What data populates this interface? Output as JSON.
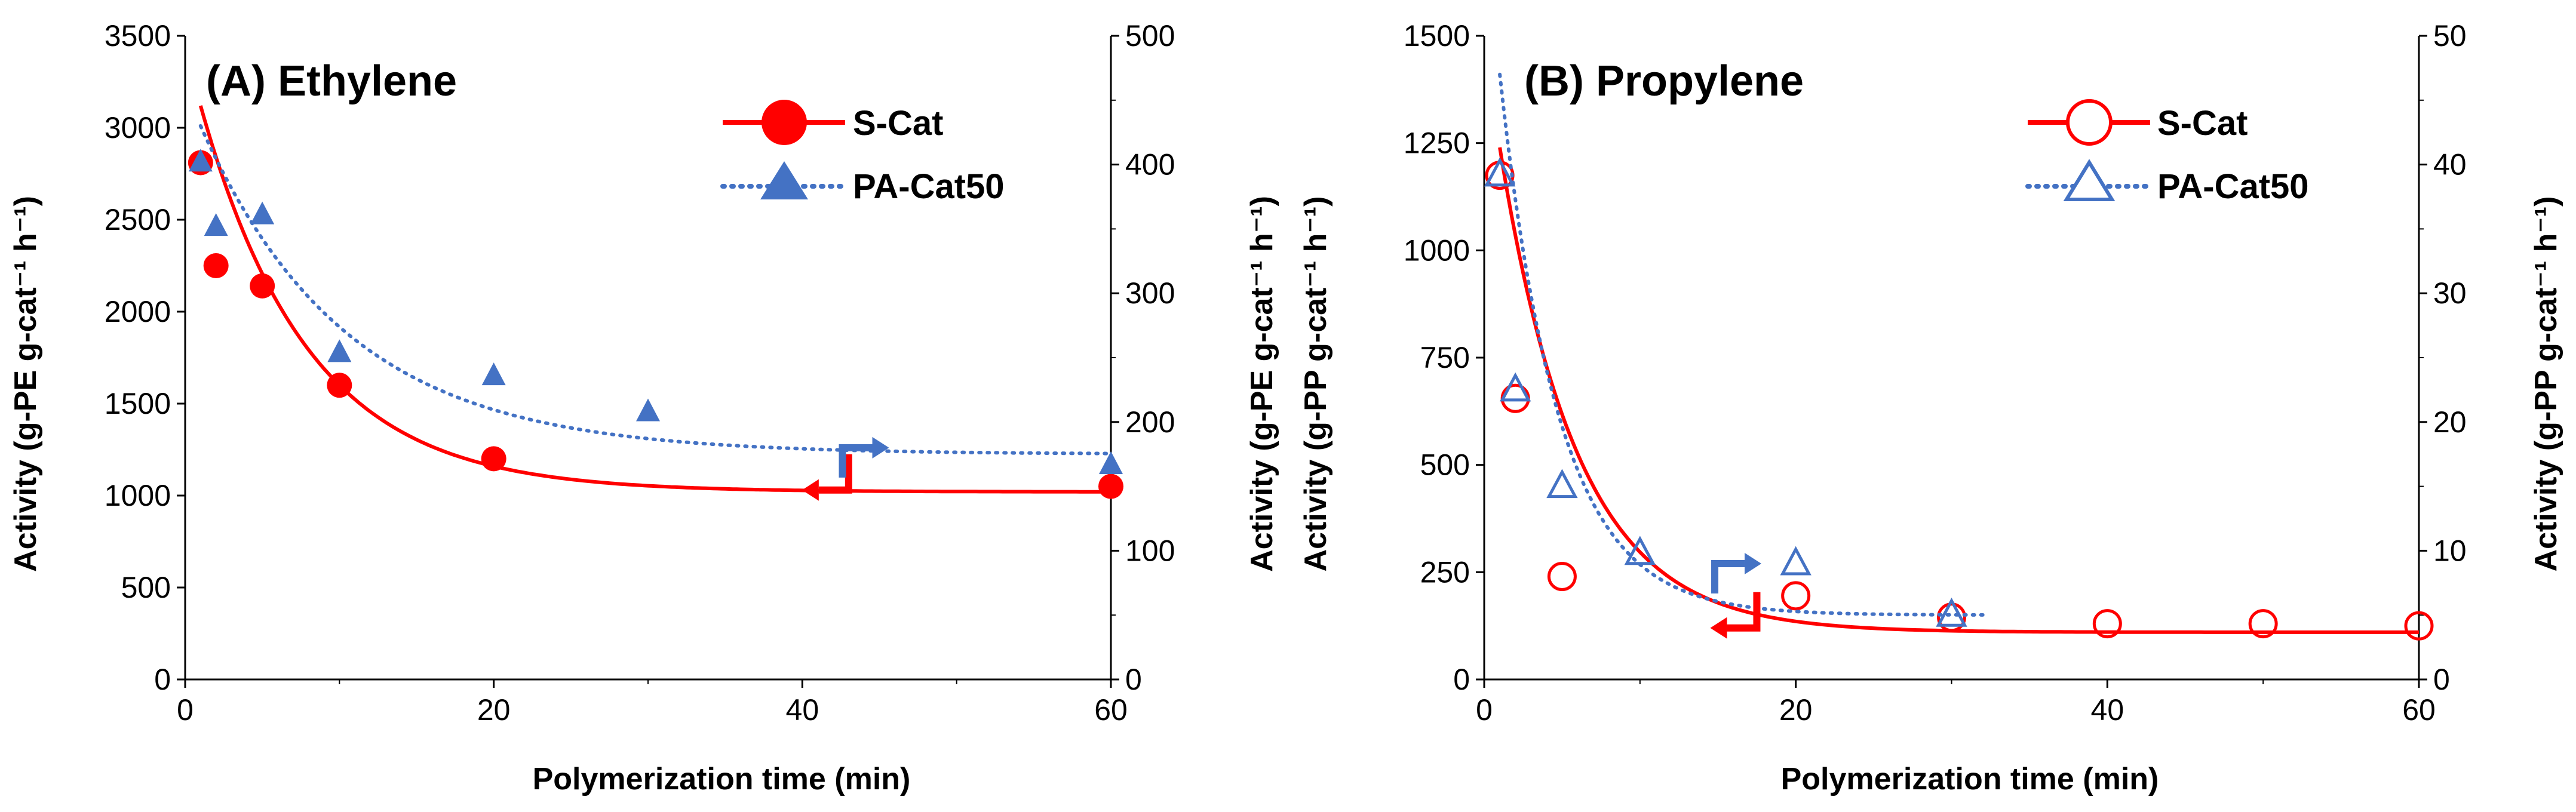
{
  "colors": {
    "s_cat": "#ff0000",
    "pa_cat50": "#4472c4",
    "axis": "#000000"
  },
  "chart_data": [
    {
      "type": "scatter",
      "title": "(A) Ethylene",
      "xlabel": "Polymerization time (min)",
      "ylabel_left": "Activity (g-PE g-cat⁻¹ h⁻¹)",
      "ylabel_right": "Activity (g-PE g-cat⁻¹ h⁻¹)",
      "xlim": [
        0,
        60
      ],
      "xticks": [
        0,
        20,
        40,
        60
      ],
      "ylim_left": [
        0,
        3500
      ],
      "yticks_left": [
        0,
        500,
        1000,
        1500,
        2000,
        2500,
        3000,
        3500
      ],
      "ylim_right": [
        0,
        500
      ],
      "yticks_right": [
        0,
        100,
        200,
        300,
        400,
        500
      ],
      "legend_position": "top-right",
      "series": [
        {
          "name": "S-Cat",
          "axis": "left",
          "marker": "circle-filled",
          "fit_style": "solid",
          "x": [
            1,
            2,
            5,
            10,
            20,
            60
          ],
          "y": [
            2810,
            2250,
            2140,
            1600,
            1200,
            1050
          ],
          "fit": {
            "a": 1020,
            "b": 2100,
            "tau": 7.0
          }
        },
        {
          "name": "PA-Cat50",
          "axis": "right",
          "marker": "triangle-filled",
          "fit_style": "dotted",
          "x": [
            1,
            2,
            5,
            10,
            20,
            30,
            60
          ],
          "y": [
            402,
            352,
            361,
            254,
            236,
            208,
            167
          ],
          "fit": {
            "a": 175,
            "b": 255,
            "tau": 9.5
          }
        }
      ],
      "annotations": [
        {
          "label": "S-Cat axis arrow",
          "points_to": "left",
          "color": "red",
          "at_data": [
            43,
            1030
          ]
        },
        {
          "label": "PA-Cat50 axis arrow",
          "points_to": "right",
          "color": "blue",
          "at_data": [
            42.6,
            1260
          ]
        }
      ]
    },
    {
      "type": "scatter",
      "title": "(B) Propylene",
      "xlabel": "Polymerization time (min)",
      "ylabel_left": "Activity (g-PP g-cat⁻¹ h⁻¹)",
      "ylabel_right": "Activity (g-PP g-cat⁻¹ h⁻¹)",
      "xlim": [
        0,
        60
      ],
      "xticks": [
        0,
        20,
        40,
        60
      ],
      "ylim_left": [
        0,
        1500
      ],
      "yticks_left": [
        0,
        250,
        500,
        750,
        1000,
        1250,
        1500
      ],
      "ylim_right": [
        0,
        50
      ],
      "yticks_right": [
        0,
        10,
        20,
        30,
        40,
        50
      ],
      "legend_position": "top-right",
      "series": [
        {
          "name": "S-Cat",
          "axis": "left",
          "marker": "circle-open",
          "fit_style": "solid",
          "x": [
            1,
            2,
            5,
            20,
            30,
            40,
            50,
            60
          ],
          "y": [
            1175,
            655,
            240,
            195,
            145,
            130,
            130,
            125
          ],
          "fit": {
            "a": 110,
            "b": 1130,
            "tau": 5.0
          }
        },
        {
          "name": "PA-Cat50",
          "axis": "right",
          "marker": "triangle-open",
          "fit_style": "dotted",
          "x": [
            1,
            2,
            5,
            10,
            20,
            30
          ],
          "y": [
            39.2,
            22.5,
            15.0,
            9.8,
            9.0,
            5.0
          ],
          "fit": {
            "a": 5.0,
            "b": 42.0,
            "tau": 3.8,
            "x_end": 32
          }
        }
      ],
      "annotations": [
        {
          "label": "S-Cat axis arrow",
          "points_to": "left",
          "color": "red",
          "at_data": [
            17.5,
            120
          ]
        },
        {
          "label": "PA-Cat50 axis arrow",
          "points_to": "right",
          "color": "blue",
          "at_data": [
            14.8,
            270
          ]
        }
      ]
    }
  ]
}
